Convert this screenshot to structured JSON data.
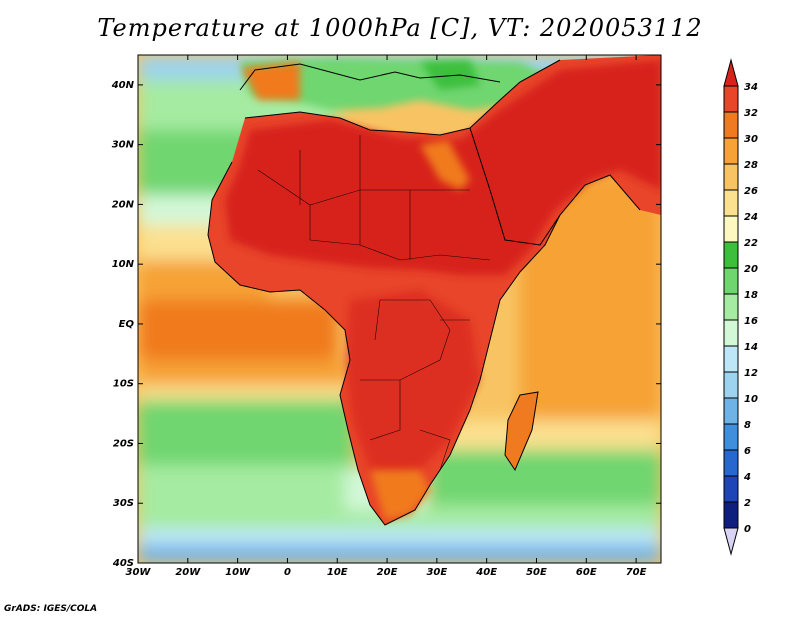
{
  "title": "Temperature at 1000hPa [C], VT: 2020053112",
  "credit": "GrADS: IGES/COLA",
  "map": {
    "lat_labels": [
      "40N",
      "30N",
      "20N",
      "10N",
      "EQ",
      "10S",
      "20S",
      "30S",
      "40S"
    ],
    "lon_labels": [
      "30W",
      "20W",
      "10W",
      "0",
      "10E",
      "20E",
      "30E",
      "40E",
      "50E",
      "60E",
      "70E"
    ],
    "lat_range": [
      -40,
      45
    ],
    "lon_range": [
      -30,
      75
    ]
  },
  "colorbar": {
    "labels": [
      "34",
      "32",
      "30",
      "28",
      "26",
      "24",
      "22",
      "20",
      "18",
      "16",
      "14",
      "12",
      "10",
      "8",
      "6",
      "4",
      "2",
      "0"
    ],
    "colors": [
      "#d7231a",
      "#e8452a",
      "#f07a1f",
      "#f6a236",
      "#f8c463",
      "#fbe08f",
      "#fdf8c0",
      "#3dbf3d",
      "#6fd66f",
      "#a5eba1",
      "#d3f8d8",
      "#bde7f7",
      "#9cd3ee",
      "#6fb2e6",
      "#3f8fdc",
      "#2867cf",
      "#1e45b8",
      "#0e1f7e"
    ]
  }
}
